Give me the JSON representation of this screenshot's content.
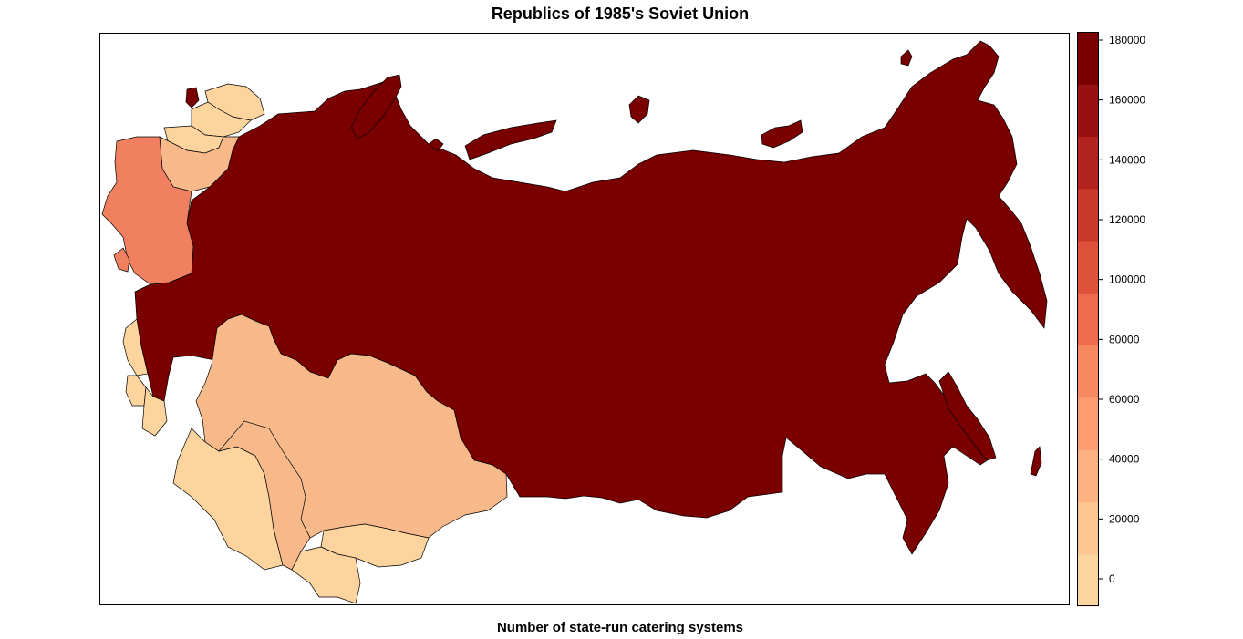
{
  "map": {
    "title": "Republics of 1985's Soviet Union",
    "caption": "Number of state-run catering systems"
  },
  "legend": {
    "tick_labels": [
      "0",
      "20000",
      "40000",
      "60000",
      "80000",
      "100000",
      "120000",
      "140000",
      "160000",
      "180000"
    ],
    "color_steps": [
      "#FDD49E",
      "#FDC58F",
      "#FCB27F",
      "#FC9C6F",
      "#F7875F",
      "#EF6B4E",
      "#DE513B",
      "#C93A2C",
      "#B2221F",
      "#961110",
      "#7A0000"
    ]
  },
  "regions": [
    {
      "name": "Russia",
      "color": "#7A0000"
    },
    {
      "name": "Kazakhstan",
      "color": "#F7B98A"
    },
    {
      "name": "Ukraine",
      "color": "#F08060"
    },
    {
      "name": "Belarus",
      "color": "#F7B98A"
    },
    {
      "name": "Uzbekistan",
      "color": "#F7B98A"
    },
    {
      "name": "Turkmenistan",
      "color": "#FDD49E"
    },
    {
      "name": "Kyrgyzstan",
      "color": "#FDD49E"
    },
    {
      "name": "Tajikistan",
      "color": "#FDD49E"
    },
    {
      "name": "Georgia",
      "color": "#FDD49E"
    },
    {
      "name": "Azerbaijan",
      "color": "#FDD49E"
    },
    {
      "name": "Armenia",
      "color": "#FDD49E"
    },
    {
      "name": "Lithuania",
      "color": "#FDD49E"
    },
    {
      "name": "Latvia",
      "color": "#FDD49E"
    },
    {
      "name": "Estonia",
      "color": "#FDD49E"
    },
    {
      "name": "Moldova",
      "color": "#F08060"
    }
  ]
}
